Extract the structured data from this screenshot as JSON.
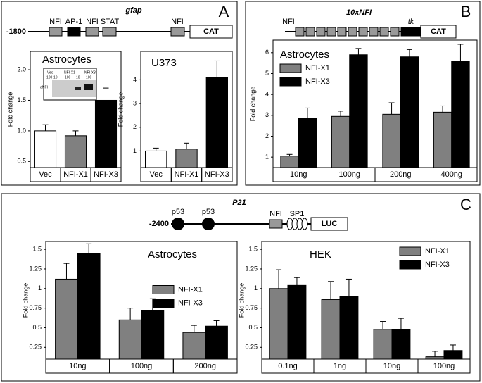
{
  "panels": [
    {
      "letter": "A",
      "gene": "gfap",
      "start": "-1800",
      "elements": [
        "NFI",
        "AP-1",
        "NFI",
        "STAT",
        "NFI",
        "CAT"
      ]
    },
    {
      "letter": "B",
      "gene": "10xNFI",
      "elements": [
        "NFI",
        "tk",
        "CAT"
      ]
    },
    {
      "letter": "C",
      "gene": "P21",
      "start": "-2400",
      "elements": [
        "p53",
        "p53",
        "NFI",
        "SP1",
        "LUC"
      ]
    }
  ],
  "inset": {
    "lanes": [
      "Vec",
      "NFI-X1",
      "NFI-X3"
    ],
    "amounts": [
      "100",
      "10",
      "100",
      "10",
      "100"
    ],
    "antibody": "αNFI"
  },
  "chart_data": [
    {
      "type": "bar",
      "title": "Astrocytes",
      "y_label": "Fold change",
      "categories": [
        "Vec",
        "NFI-X1",
        "NFI-X3"
      ],
      "values": [
        1.0,
        0.92,
        1.5
      ],
      "errors": [
        0.1,
        0.08,
        0.2
      ],
      "colors": [
        "#ffffff",
        "#808080",
        "#000000"
      ],
      "ylim": [
        0.4,
        2.3
      ],
      "yticks": [
        {
          "value": 0.5,
          "label": "0.5"
        },
        {
          "value": 1,
          "label": "1.0"
        },
        {
          "value": 1.5,
          "label": "1.5"
        },
        {
          "value": 2,
          "label": "2.0"
        }
      ]
    },
    {
      "type": "bar",
      "title": "U373",
      "y_label": "Fold change",
      "categories": [
        "Vec",
        "NFI-X1",
        "NFI-X3"
      ],
      "values": [
        1.0,
        1.08,
        4.1
      ],
      "errors": [
        0.12,
        0.25,
        0.7
      ],
      "colors": [
        "#ffffff",
        "#808080",
        "#000000"
      ],
      "ylim": [
        0.3,
        5.2
      ],
      "yticks": [
        1,
        2,
        3,
        4
      ]
    },
    {
      "type": "bar",
      "title": "Astrocytes",
      "y_label": "Fold change",
      "legend": "upper left",
      "categories": [
        "10ng",
        "100ng",
        "200ng",
        "400ng"
      ],
      "series": [
        {
          "name": "NFI-X1",
          "color": "#808080",
          "values": [
            1.05,
            2.95,
            3.05,
            3.15
          ],
          "errors": [
            0.08,
            0.25,
            0.55,
            0.3
          ]
        },
        {
          "name": "NFI-X3",
          "color": "#000000",
          "values": [
            2.85,
            5.9,
            5.8,
            5.6
          ],
          "errors": [
            0.5,
            0.3,
            0.35,
            0.8
          ]
        }
      ],
      "ylim": [
        0.5,
        6.6
      ],
      "yticks": [
        1,
        2,
        3,
        4,
        5,
        6
      ]
    },
    {
      "type": "bar",
      "title": "Astrocytes",
      "y_label": "Fold change",
      "legend": "center right",
      "categories": [
        "10ng",
        "100ng",
        "200ng"
      ],
      "series": [
        {
          "name": "NFI-X1",
          "color": "#808080",
          "values": [
            1.12,
            0.6,
            0.44
          ],
          "errors": [
            0.2,
            0.15,
            0.09
          ]
        },
        {
          "name": "NFI-X3",
          "color": "#000000",
          "values": [
            1.45,
            0.72,
            0.52
          ],
          "errors": [
            0.12,
            0.15,
            0.07
          ]
        }
      ],
      "ylim": [
        0.1,
        1.6
      ],
      "yticks": [
        0.25,
        0.5,
        0.75,
        1,
        1.25,
        1.5
      ]
    },
    {
      "type": "bar",
      "title": "HEK",
      "y_label": "Fold change",
      "legend": "upper right",
      "categories": [
        "0.1ng",
        "1ng",
        "10ng",
        "100ng"
      ],
      "series": [
        {
          "name": "NFI-X1",
          "color": "#808080",
          "values": [
            1.0,
            0.86,
            0.48,
            0.13
          ],
          "errors": [
            0.24,
            0.23,
            0.1,
            0.07
          ]
        },
        {
          "name": "NFI-X3",
          "color": "#000000",
          "values": [
            1.04,
            0.9,
            0.48,
            0.21
          ],
          "errors": [
            0.1,
            0.22,
            0.14,
            0.07
          ]
        }
      ],
      "ylim": [
        0.1,
        1.6
      ],
      "yticks": [
        0.25,
        0.5,
        0.75,
        1,
        1.25,
        1.5
      ]
    }
  ]
}
